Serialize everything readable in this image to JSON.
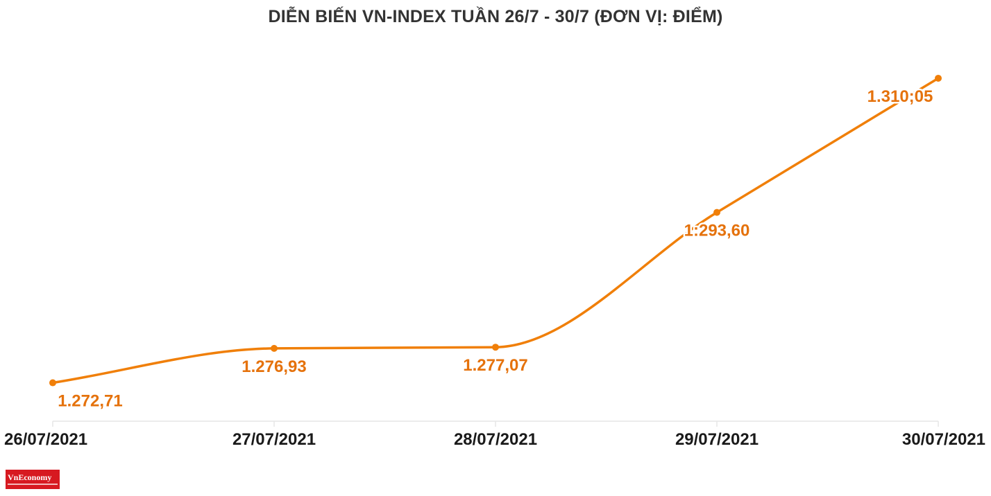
{
  "chart_data": {
    "type": "line",
    "title": "DIỄN BIẾN VN-INDEX TUẦN 26/7 - 30/7 (ĐƠN VỊ: ĐIỂM)",
    "xlabel": "",
    "ylabel": "",
    "categories": [
      "26/07/2021",
      "27/07/2021",
      "28/07/2021",
      "29/07/2021",
      "30/07/2021"
    ],
    "values": [
      1272.71,
      1276.93,
      1277.07,
      1293.6,
      1310.05
    ],
    "value_labels": [
      "1.272,71",
      "1.276,93",
      "1.277,07",
      "1:293,60",
      "1.310;05"
    ],
    "ylim": [
      1268,
      1312
    ],
    "grid": false,
    "line_color": "#f07f09",
    "label_color": "#e5720c",
    "axis_color": "#e6e6e6"
  },
  "logo": {
    "text": "VnEconomy",
    "color": "#d71920"
  }
}
